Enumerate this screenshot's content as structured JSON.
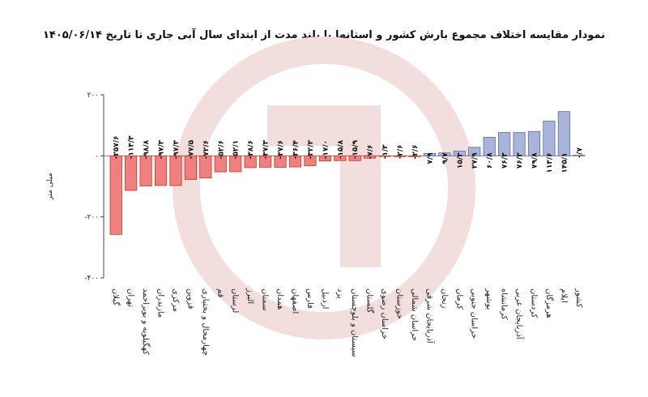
{
  "title": "نمودار مقایسه اختلاف مجموع بارش کشور و استانها با بلند مدت از ابتدای سال آبی جاری تا تاریخ ۱۴۰۵/۰۶/۱۴",
  "colors": {
    "negative_fill": "#f08080",
    "negative_stroke": "#c0392b",
    "positive_fill": "#a8b4d8",
    "positive_stroke": "#5b6aa6",
    "watermark": "#f3dede"
  },
  "chart_data": {
    "type": "bar",
    "title": "نمودار مقایسه اختلاف مجموع بارش کشور و استانها با بلند مدت از ابتدای سال آبی جاری تا تاریخ ۱۴۰۵/۰۶/۱۴",
    "ylabel": "میلی متر",
    "xlabel": "",
    "ylim": [
      -400,
      200
    ],
    "yticks": [
      200,
      0,
      -200,
      -400
    ],
    "ytick_labels": [
      "۲۰۰",
      "۰",
      "-۲۰۰",
      "-۴۰۰"
    ],
    "grid": false,
    "categories": [
      "گیلان",
      "تهران",
      "کهگیلویه و بویراحمد",
      "مازندران",
      "مرکزی",
      "قزوین",
      "چهارمحال و بختیاری",
      "قم",
      "لرستان",
      "البرز",
      "سمنان",
      "همدان",
      "اصفهان",
      "فارس",
      "اردبیل",
      "یزد",
      "سیستان و بلوچستان",
      "گلستان",
      "خراسان رضوی",
      "خوزستان",
      "خراسان شمالی",
      "آذربایجان شرقی",
      "زنجان",
      "کرمان",
      "خراسان جنوبی",
      "بوشهر",
      "کرمانشاه",
      "آذربایجان غربی",
      "کردستان",
      "هرمزگان",
      "ایلام",
      "کشور"
    ],
    "values": [
      -257.6,
      -113.3,
      -98.8,
      -97.3,
      -97.3,
      -77.5,
      -72.6,
      -52.6,
      -52.1,
      -38.6,
      -37.3,
      -37.6,
      -36.4,
      -32.3,
      -17.0,
      -15.8,
      -15.9,
      -7.6,
      -1.3,
      -2.6,
      -2.6,
      7.9,
      9.7,
      15.3,
      27.9,
      60.8,
      76.3,
      76.3,
      79.8,
      113.6,
      145.1,
      0.7
    ],
    "value_labels": [
      "-۲۵۷/۶",
      "-۱۱۳/۳",
      "-۹۸/۸",
      "-۹۷/۳",
      "-۹۷/۳",
      "-۷۷/۵",
      "-۷۲/۶",
      "-۵۲/۶",
      "-۵۲/۱",
      "-۳۸/۶",
      "-۳۷/۳",
      "-۳۷/۶",
      "-۳۶/۴",
      "-۳۲/۳",
      "-۱۷/۰",
      "-۱۵/۸",
      "-۱۵/۹",
      "-۷/۶",
      "-۱/۳",
      "-۲/۶",
      "-۲/۶",
      "۷/۹",
      "۹/۷",
      "۱۵/۳",
      "۲۷/۹",
      "۶۰/۸",
      "۷۶/۳",
      "۷۶/۳",
      "۷۹/۸",
      "۱۱۳/۶",
      "۱۴۵/۱",
      "۰/۷"
    ]
  }
}
